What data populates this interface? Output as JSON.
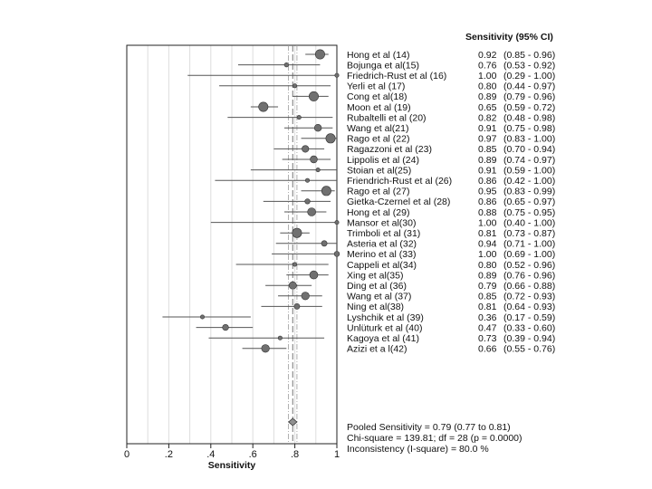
{
  "chart_data": {
    "type": "forest",
    "header": "Sensitivity (95% CI)",
    "xlabel": "Sensitivity",
    "xlim": [
      0,
      1
    ],
    "x_ticks": [
      "0",
      ".2",
      ".4",
      ".6",
      ".8",
      "1"
    ],
    "x_tick_values": [
      0,
      0.2,
      0.4,
      0.6,
      0.8,
      1
    ],
    "studies": [
      {
        "label": "Hong et al (14)",
        "value": 0.92,
        "lower": 0.85,
        "upper": 0.96,
        "ci_text": "0.92   (0.85 - 0.96)",
        "val_text": "0.92",
        "ci_range": "(0.85 - 0.96)"
      },
      {
        "label": "Bojunga et al(15)",
        "value": 0.76,
        "lower": 0.53,
        "upper": 0.92,
        "val_text": "0.76",
        "ci_range": "(0.53 - 0.92)"
      },
      {
        "label": "Friedrich-Rust et al (16)",
        "value": 1.0,
        "lower": 0.29,
        "upper": 1.0,
        "val_text": "1.00",
        "ci_range": "(0.29 - 1.00)"
      },
      {
        "label": "Yerli et al (17)",
        "value": 0.8,
        "lower": 0.44,
        "upper": 0.97,
        "val_text": "0.80",
        "ci_range": "(0.44 - 0.97)"
      },
      {
        "label": "Cong et al(18)",
        "value": 0.89,
        "lower": 0.79,
        "upper": 0.96,
        "val_text": "0.89",
        "ci_range": "(0.79 - 0.96)"
      },
      {
        "label": "Moon et al (19)",
        "value": 0.65,
        "lower": 0.59,
        "upper": 0.72,
        "val_text": "0.65",
        "ci_range": "(0.59 - 0.72)"
      },
      {
        "label": "Rubaltelli et al (20)",
        "value": 0.82,
        "lower": 0.48,
        "upper": 0.98,
        "val_text": "0.82",
        "ci_range": "(0.48 - 0.98)"
      },
      {
        "label": "Wang et al(21)",
        "value": 0.91,
        "lower": 0.75,
        "upper": 0.98,
        "val_text": "0.91",
        "ci_range": "(0.75 - 0.98)"
      },
      {
        "label": "Rago et al (22)",
        "value": 0.97,
        "lower": 0.83,
        "upper": 1.0,
        "val_text": "0.97",
        "ci_range": "(0.83 - 1.00)"
      },
      {
        "label": "Ragazzoni et al (23)",
        "value": 0.85,
        "lower": 0.7,
        "upper": 0.94,
        "val_text": "0.85",
        "ci_range": "(0.70 - 0.94)"
      },
      {
        "label": "Lippolis et al (24)",
        "value": 0.89,
        "lower": 0.74,
        "upper": 0.97,
        "val_text": "0.89",
        "ci_range": "(0.74 - 0.97)"
      },
      {
        "label": "Stoian et al(25)",
        "value": 0.91,
        "lower": 0.59,
        "upper": 1.0,
        "val_text": "0.91",
        "ci_range": "(0.59 - 1.00)"
      },
      {
        "label": "Friendrich-Rust et al (26)",
        "value": 0.86,
        "lower": 0.42,
        "upper": 1.0,
        "val_text": "0.86",
        "ci_range": "(0.42 - 1.00)"
      },
      {
        "label": "Rago et al (27)",
        "value": 0.95,
        "lower": 0.83,
        "upper": 0.99,
        "val_text": "0.95",
        "ci_range": "(0.83 - 0.99)"
      },
      {
        "label": "Gietka-Czernel et al (28)",
        "value": 0.86,
        "lower": 0.65,
        "upper": 0.97,
        "val_text": "0.86",
        "ci_range": "(0.65 - 0.97)"
      },
      {
        "label": "Hong et al (29)",
        "value": 0.88,
        "lower": 0.75,
        "upper": 0.95,
        "val_text": "0.88",
        "ci_range": "(0.75 - 0.95)"
      },
      {
        "label": "Mansor et al(30)",
        "value": 1.0,
        "lower": 0.4,
        "upper": 1.0,
        "val_text": "1.00",
        "ci_range": "(0.40 - 1.00)"
      },
      {
        "label": "Trimboli et al (31)",
        "value": 0.81,
        "lower": 0.73,
        "upper": 0.87,
        "val_text": "0.81",
        "ci_range": "(0.73 - 0.87)"
      },
      {
        "label": "Asteria et al (32)",
        "value": 0.94,
        "lower": 0.71,
        "upper": 1.0,
        "val_text": "0.94",
        "ci_range": "(0.71 - 1.00)"
      },
      {
        "label": "Merino et al (33)",
        "value": 1.0,
        "lower": 0.69,
        "upper": 1.0,
        "val_text": "1.00",
        "ci_range": "(0.69 - 1.00)"
      },
      {
        "label": "Cappeli et al(34)",
        "value": 0.8,
        "lower": 0.52,
        "upper": 0.96,
        "val_text": "0.80",
        "ci_range": "(0.52 - 0.96)"
      },
      {
        "label": "Xing  et al(35)",
        "value": 0.89,
        "lower": 0.76,
        "upper": 0.96,
        "val_text": "0.89",
        "ci_range": "(0.76 - 0.96)"
      },
      {
        "label": "Ding et al (36)",
        "value": 0.79,
        "lower": 0.66,
        "upper": 0.88,
        "val_text": "0.79",
        "ci_range": "(0.66 - 0.88)"
      },
      {
        "label": "Wang et al (37)",
        "value": 0.85,
        "lower": 0.72,
        "upper": 0.93,
        "val_text": "0.85",
        "ci_range": "(0.72 - 0.93)"
      },
      {
        "label": "Ning et al(38)",
        "value": 0.81,
        "lower": 0.64,
        "upper": 0.93,
        "val_text": "0.81",
        "ci_range": "(0.64 - 0.93)"
      },
      {
        "label": "Lyshchik et al (39)",
        "value": 0.36,
        "lower": 0.17,
        "upper": 0.59,
        "val_text": "0.36",
        "ci_range": "(0.17 - 0.59)"
      },
      {
        "label": "Unlüturk et al (40)",
        "value": 0.47,
        "lower": 0.33,
        "upper": 0.6,
        "val_text": "0.47",
        "ci_range": "(0.33 - 0.60)"
      },
      {
        "label": "Kagoya et al (41)",
        "value": 0.73,
        "lower": 0.39,
        "upper": 0.94,
        "val_text": "0.73",
        "ci_range": "(0.39 - 0.94)"
      },
      {
        "label": "Azizi et a l(42)",
        "value": 0.66,
        "lower": 0.55,
        "upper": 0.76,
        "val_text": "0.66",
        "ci_range": "(0.55 - 0.76)"
      }
    ],
    "pooled": {
      "value": 0.79,
      "lower": 0.77,
      "upper": 0.81
    },
    "summary_lines": [
      "Pooled Sensitivity = 0.79 (0.77 to 0.81)",
      "Chi-square = 139.81; df =  28  (p = 0.0000)",
      "Inconsistency (I-square) = 80.0 %"
    ],
    "grid": true,
    "colors": {
      "marker": "#707070",
      "ci_line": "#555555",
      "grid": "#dddddd",
      "ref_line": "#777777",
      "pooled_diamond": "#909090"
    }
  }
}
